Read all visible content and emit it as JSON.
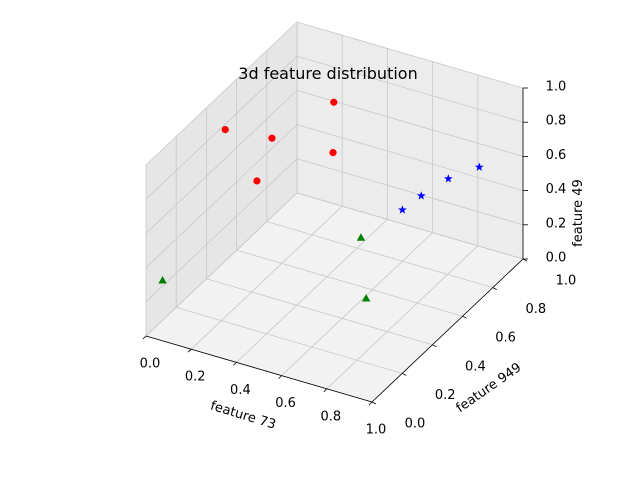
{
  "chart_data": {
    "type": "scatter",
    "title": "3d feature distribution",
    "xlabel": "feature 73",
    "ylabel": "feature 949",
    "zlabel": "feature 49",
    "xlim": [
      0,
      1
    ],
    "ylim": [
      0,
      1
    ],
    "zlim": [
      0,
      1
    ],
    "x_ticks": [
      "0.0",
      "0.2",
      "0.4",
      "0.6",
      "0.8",
      "1.0"
    ],
    "y_ticks": [
      "0.0",
      "0.2",
      "0.4",
      "0.6",
      "0.8",
      "1.0"
    ],
    "z_ticks": [
      "0.0",
      "0.2",
      "0.4",
      "0.6",
      "0.8",
      "1.0"
    ],
    "grid": true,
    "series": [
      {
        "marker": "circle",
        "color": "#ff0000",
        "points": [
          {
            "x": 0.05,
            "y": 0.45,
            "z": 0.85
          },
          {
            "x": 0.19,
            "y": 0.55,
            "z": 0.77
          },
          {
            "x": 0.09,
            "y": 0.6,
            "z": 0.44
          },
          {
            "x": 0.35,
            "y": 0.72,
            "z": 0.9
          },
          {
            "x": 0.46,
            "y": 0.55,
            "z": 0.79
          }
        ]
      },
      {
        "marker": "star",
        "color": "#0000ff",
        "points": [
          {
            "x": 0.6,
            "y": 0.8,
            "z": 0.3
          },
          {
            "x": 0.65,
            "y": 0.85,
            "z": 0.36
          },
          {
            "x": 0.87,
            "y": 0.7,
            "z": 0.67
          },
          {
            "x": 0.86,
            "y": 0.92,
            "z": 0.55
          }
        ]
      },
      {
        "marker": "triangle",
        "color": "#008000",
        "points": [
          {
            "x": 0.04,
            "y": 0.05,
            "z": 0.3
          },
          {
            "x": 0.43,
            "y": 0.78,
            "z": 0.09
          },
          {
            "x": 0.64,
            "y": 0.5,
            "z": 0.05
          }
        ]
      }
    ]
  }
}
